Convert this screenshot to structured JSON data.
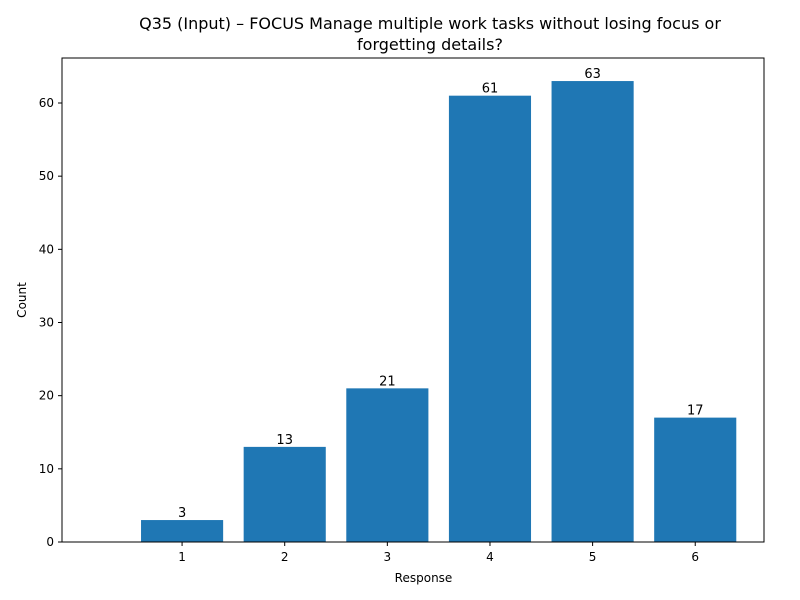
{
  "chart_data": {
    "type": "bar",
    "title_lines": [
      "Q35 (Input) – FOCUS Manage multiple work tasks without losing focus or",
      "forgetting details?"
    ],
    "xlabel": "Response",
    "ylabel": "Count",
    "categories": [
      "1",
      "2",
      "3",
      "4",
      "5",
      "6"
    ],
    "values": [
      3,
      13,
      21,
      61,
      63,
      17
    ],
    "ylim": [
      0,
      66.15
    ],
    "yticks": [
      0,
      10,
      20,
      30,
      40,
      50,
      60
    ],
    "bar_color": "#1f77b4",
    "grid": false,
    "legend": "none"
  }
}
